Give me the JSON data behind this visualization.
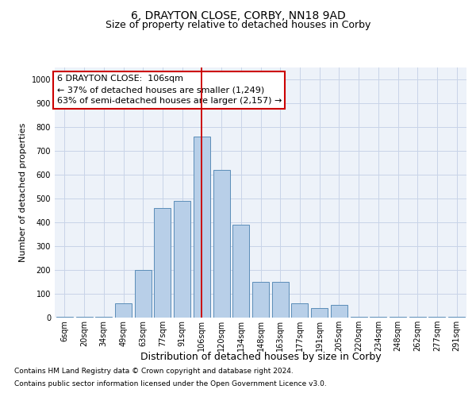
{
  "title": "6, DRAYTON CLOSE, CORBY, NN18 9AD",
  "subtitle": "Size of property relative to detached houses in Corby",
  "xlabel": "Distribution of detached houses by size in Corby",
  "ylabel": "Number of detached properties",
  "categories": [
    "6sqm",
    "20sqm",
    "34sqm",
    "49sqm",
    "63sqm",
    "77sqm",
    "91sqm",
    "106sqm",
    "120sqm",
    "134sqm",
    "148sqm",
    "163sqm",
    "177sqm",
    "191sqm",
    "205sqm",
    "220sqm",
    "234sqm",
    "248sqm",
    "262sqm",
    "277sqm",
    "291sqm"
  ],
  "values": [
    5,
    5,
    5,
    60,
    200,
    460,
    490,
    760,
    620,
    390,
    150,
    150,
    60,
    40,
    55,
    5,
    5,
    5,
    5,
    5,
    5
  ],
  "bar_color": "#b8cfe8",
  "bar_edge_color": "#5b8db8",
  "red_line_index": 7,
  "annotation_line1": "6 DRAYTON CLOSE:  106sqm",
  "annotation_line2": "← 37% of detached houses are smaller (1,249)",
  "annotation_line3": "63% of semi-detached houses are larger (2,157) →",
  "annotation_box_edge": "#cc0000",
  "footer_line1": "Contains HM Land Registry data © Crown copyright and database right 2024.",
  "footer_line2": "Contains public sector information licensed under the Open Government Licence v3.0.",
  "ylim": [
    0,
    1050
  ],
  "yticks": [
    0,
    100,
    200,
    300,
    400,
    500,
    600,
    700,
    800,
    900,
    1000
  ],
  "background_color": "#ffffff",
  "plot_bg_color": "#edf2f9",
  "grid_color": "#c8d4e8",
  "title_fontsize": 10,
  "subtitle_fontsize": 9,
  "xlabel_fontsize": 9,
  "ylabel_fontsize": 8,
  "tick_fontsize": 7,
  "annotation_fontsize": 8,
  "footer_fontsize": 6.5
}
